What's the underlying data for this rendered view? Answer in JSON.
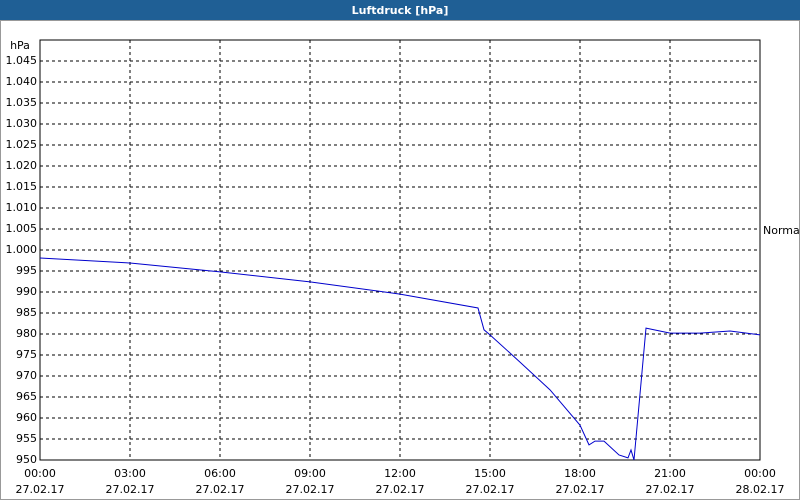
{
  "chart_data": {
    "type": "line",
    "title": "Luftdruck [hPa]",
    "y_label": "hPa",
    "xlim": [
      0,
      24
    ],
    "xticks": [
      {
        "value": 0,
        "label": "00:00"
      },
      {
        "value": 3,
        "label": "03:00"
      },
      {
        "value": 6,
        "label": "06:00"
      },
      {
        "value": 9,
        "label": "09:00"
      },
      {
        "value": 12,
        "label": "12:00"
      },
      {
        "value": 15,
        "label": "15:00"
      },
      {
        "value": 18,
        "label": "18:00"
      },
      {
        "value": 21,
        "label": "21:00"
      },
      {
        "value": 24,
        "label": "00:00"
      }
    ],
    "xtick_dates": [
      "27.02.17",
      "27.02.17",
      "27.02.17",
      "27.02.17",
      "27.02.17",
      "27.02.17",
      "27.02.17",
      "27.02.17",
      "28.02.17"
    ],
    "ylim": [
      950,
      1050
    ],
    "yticks": [
      950,
      955,
      960,
      965,
      970,
      975,
      980,
      985,
      990,
      995,
      {
        "value": 1000,
        "label": "1.000"
      },
      {
        "value": 1005,
        "label": "1.005"
      },
      {
        "value": 1010,
        "label": "1.010"
      },
      {
        "value": 1015,
        "label": "1.015"
      },
      {
        "value": 1020,
        "label": "1.020"
      },
      {
        "value": 1025,
        "label": "1.025"
      },
      {
        "value": 1030,
        "label": "1.030"
      },
      {
        "value": 1035,
        "label": "1.035"
      },
      {
        "value": 1040,
        "label": "1.040"
      },
      {
        "value": 1045,
        "label": "1.045"
      }
    ],
    "grid": true,
    "reference": {
      "label": "Normal",
      "value": 1004.5
    },
    "series": [
      {
        "color": "#0000cc",
        "x": [
          0,
          3,
          6,
          9,
          12,
          14.6,
          14.8,
          15,
          16,
          17,
          18,
          18.3,
          18.5,
          18.8,
          19.3,
          19.6,
          19.7,
          19.8,
          20.2,
          21,
          22,
          23,
          24
        ],
        "values": [
          998.1,
          996.9,
          994.8,
          992.4,
          989.5,
          986.2,
          981,
          979.8,
          973.3,
          966.7,
          958.3,
          953.6,
          954.5,
          954.5,
          951.2,
          950.5,
          952.4,
          950,
          981.4,
          980.2,
          980.2,
          980.7,
          979.8
        ]
      }
    ]
  }
}
